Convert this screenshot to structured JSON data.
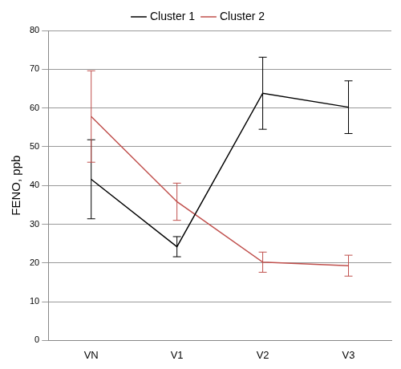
{
  "chart_data": {
    "type": "line",
    "categories": [
      "VN",
      "V1",
      "V2",
      "V3"
    ],
    "y_label": "FENO, ppb",
    "series": [
      {
        "name": "Cluster 1",
        "color": "#000000",
        "values": [
          41.6,
          24.2,
          63.8,
          60.2
        ],
        "errors": [
          10.2,
          2.6,
          9.3,
          6.8
        ]
      },
      {
        "name": "Cluster 2",
        "color": "#c0504d",
        "values": [
          57.8,
          35.8,
          20.2,
          19.3
        ],
        "errors": [
          11.8,
          4.8,
          2.6,
          2.7
        ]
      }
    ],
    "ylim": [
      0,
      80
    ],
    "yticks": [
      0,
      10,
      20,
      30,
      40,
      50,
      60,
      70,
      80
    ],
    "grid": true,
    "legend": "top"
  }
}
